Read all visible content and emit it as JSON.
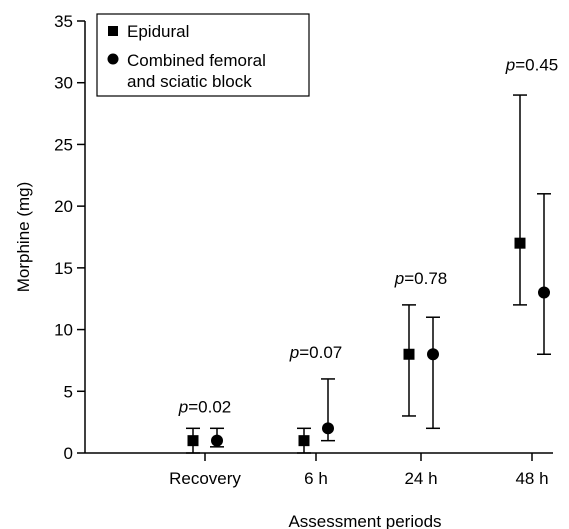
{
  "chart_data": {
    "type": "scatter",
    "title": "",
    "xlabel": "Assessment periods",
    "ylabel": "Morphine (mg)",
    "ylim": [
      0,
      35
    ],
    "yticks": [
      0,
      5,
      10,
      15,
      20,
      25,
      30,
      35
    ],
    "categories": [
      "Recovery",
      "6 h",
      "24 h",
      "48 h"
    ],
    "grid": false,
    "legend_position": "top-left",
    "series": [
      {
        "name": "Epidural",
        "marker": "square",
        "values": [
          1,
          1,
          8,
          17
        ],
        "lower": [
          0,
          0,
          3,
          12
        ],
        "upper": [
          2,
          2,
          12,
          29
        ]
      },
      {
        "name": "Combined femoral and sciatic block",
        "marker": "circle",
        "values": [
          1,
          2,
          8,
          13
        ],
        "lower": [
          0.5,
          1,
          2,
          8
        ],
        "upper": [
          2,
          6,
          11,
          21
        ]
      }
    ],
    "annotations": [
      {
        "category": "Recovery",
        "p_prefix": "p",
        "p_value": "=0.02",
        "y": 3.3
      },
      {
        "category": "6 h",
        "p_prefix": "p",
        "p_value": "=0.07",
        "y": 7.7
      },
      {
        "category": "24 h",
        "p_prefix": "p",
        "p_value": "=0.78",
        "y": 13.7
      },
      {
        "category": "48 h",
        "p_prefix": "p",
        "p_value": "=0.45",
        "y": 31.0
      }
    ]
  }
}
